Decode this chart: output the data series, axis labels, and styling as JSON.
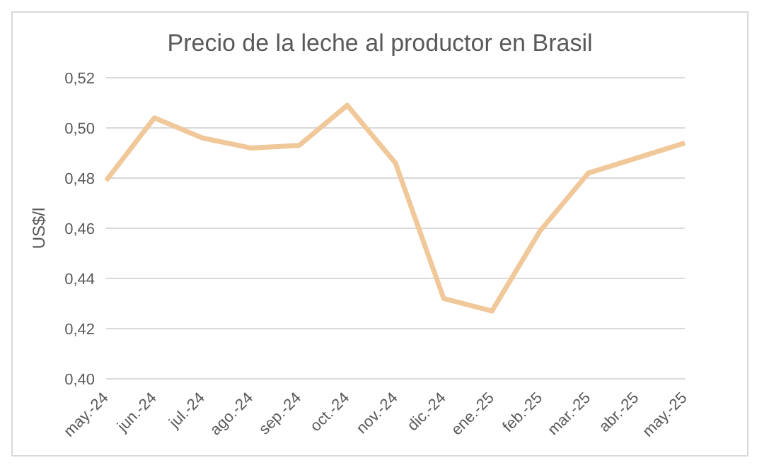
{
  "chart_data": {
    "type": "line",
    "title": "Precio de la leche al productor en Brasil",
    "ylabel": "US$/l",
    "categories": [
      "may.-24",
      "jun.-24",
      "jul.-24",
      "ago.-24",
      "sep.-24",
      "oct.-24",
      "nov.-24",
      "dic.-24",
      "ene.-25",
      "feb.-25",
      "mar.-25",
      "abr.-25",
      "may.-25"
    ],
    "series": [
      {
        "color": "#f0c899",
        "values": [
          0.479,
          0.504,
          0.496,
          0.492,
          0.493,
          0.509,
          0.486,
          0.432,
          0.427,
          0.459,
          0.482,
          0.488,
          0.494
        ]
      }
    ],
    "ylim": [
      0.4,
      0.52
    ],
    "yticks": [
      {
        "value": 0.4,
        "label": "0,40"
      },
      {
        "value": 0.42,
        "label": "0,42"
      },
      {
        "value": 0.44,
        "label": "0,44"
      },
      {
        "value": 0.46,
        "label": "0,46"
      },
      {
        "value": 0.48,
        "label": "0,48"
      },
      {
        "value": 0.5,
        "label": "0,50"
      },
      {
        "value": 0.52,
        "label": "0,52"
      }
    ],
    "grid": "y",
    "legend": false,
    "marker": "none",
    "line_style": "solid"
  }
}
